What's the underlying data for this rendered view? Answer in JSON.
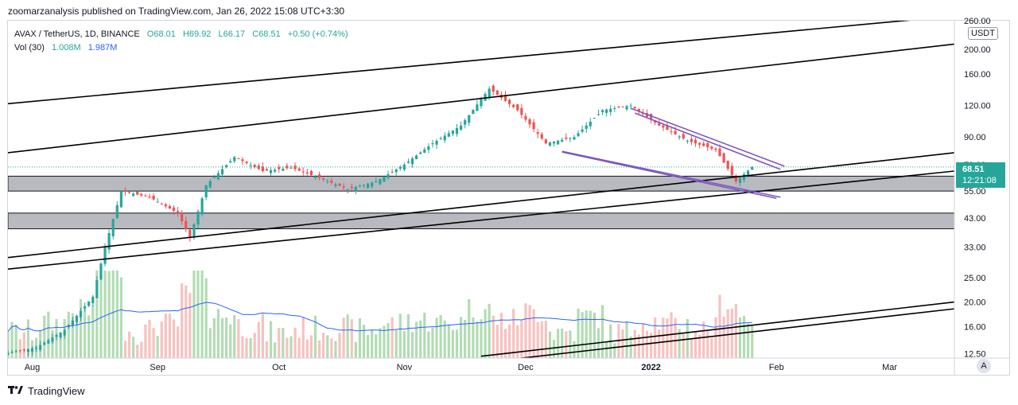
{
  "published": "zoomarzanalysis published on TradingView.com, Jan 26, 2022 15:08 UTC+3:30",
  "legend": {
    "symbol": "AVAX / TetherUS, 1D, BINANCE",
    "open": "O68.01",
    "high": "H69.92",
    "low": "L66.17",
    "close": "C68.51",
    "change": "+0.50 (+0.74%)",
    "vol_label": "Vol (30)",
    "vol_value": "1.008M",
    "vol_ma": "1.987M"
  },
  "price_scale": {
    "currency": "USDT",
    "ticks": [
      "260.00",
      "200.00",
      "160.00",
      "120.00",
      "90.00",
      "70.00",
      "55.00",
      "43.00",
      "33.00",
      "25.00",
      "20.00",
      "16.00",
      "12.50"
    ],
    "current_price": "68.51",
    "countdown": "12:21:08"
  },
  "auto_button": "A",
  "brand": "TradingView",
  "colors": {
    "up": "#26a69a",
    "down": "#ef5350",
    "trend": "#000000",
    "wedge": "#7e57c2",
    "zone": "#b2b5be",
    "vol_ma": "#2962ff"
  },
  "chart_data": {
    "type": "candlestick",
    "title": "AVAX / TetherUS, 1D, BINANCE",
    "y_scale": "log",
    "ylim": [
      12.0,
      260.0
    ],
    "x_ticks": [
      "Aug",
      "Sep",
      "Oct",
      "Nov",
      "Dec",
      "2022",
      "Feb",
      "Mar"
    ],
    "y_ticks": [
      260,
      200,
      160,
      120,
      90,
      70,
      55,
      43,
      33,
      25,
      20,
      16,
      12.5
    ],
    "x_range": [
      "2021-07-26",
      "2022-03-17"
    ],
    "close_series": [
      {
        "date": "2021-07-26",
        "close": 12.6
      },
      {
        "date": "2021-08-02",
        "close": 13.2
      },
      {
        "date": "2021-08-09",
        "close": 15.5
      },
      {
        "date": "2021-08-16",
        "close": 21.0
      },
      {
        "date": "2021-08-19",
        "close": 33.0
      },
      {
        "date": "2021-08-23",
        "close": 55.0
      },
      {
        "date": "2021-08-30",
        "close": 52.0
      },
      {
        "date": "2021-09-06",
        "close": 45.0
      },
      {
        "date": "2021-09-09",
        "close": 36.0
      },
      {
        "date": "2021-09-13",
        "close": 58.0
      },
      {
        "date": "2021-09-20",
        "close": 75.0
      },
      {
        "date": "2021-09-27",
        "close": 66.0
      },
      {
        "date": "2021-10-04",
        "close": 68.0
      },
      {
        "date": "2021-10-11",
        "close": 62.0
      },
      {
        "date": "2021-10-18",
        "close": 56.0
      },
      {
        "date": "2021-10-25",
        "close": 60.0
      },
      {
        "date": "2021-11-01",
        "close": 70.0
      },
      {
        "date": "2021-11-08",
        "close": 85.0
      },
      {
        "date": "2021-11-15",
        "close": 100.0
      },
      {
        "date": "2021-11-22",
        "close": 140.0
      },
      {
        "date": "2021-11-29",
        "close": 115.0
      },
      {
        "date": "2021-12-06",
        "close": 85.0
      },
      {
        "date": "2021-12-13",
        "close": 90.0
      },
      {
        "date": "2021-12-20",
        "close": 115.0
      },
      {
        "date": "2021-12-27",
        "close": 120.0
      },
      {
        "date": "2022-01-03",
        "close": 100.0
      },
      {
        "date": "2022-01-10",
        "close": 87.0
      },
      {
        "date": "2022-01-17",
        "close": 80.0
      },
      {
        "date": "2022-01-22",
        "close": 60.0
      },
      {
        "date": "2022-01-26",
        "close": 68.51
      }
    ],
    "volume_ma": 1.987,
    "volume_last": 1.008,
    "support_zones": [
      [
        55,
        63
      ],
      [
        39,
        45
      ]
    ]
  }
}
